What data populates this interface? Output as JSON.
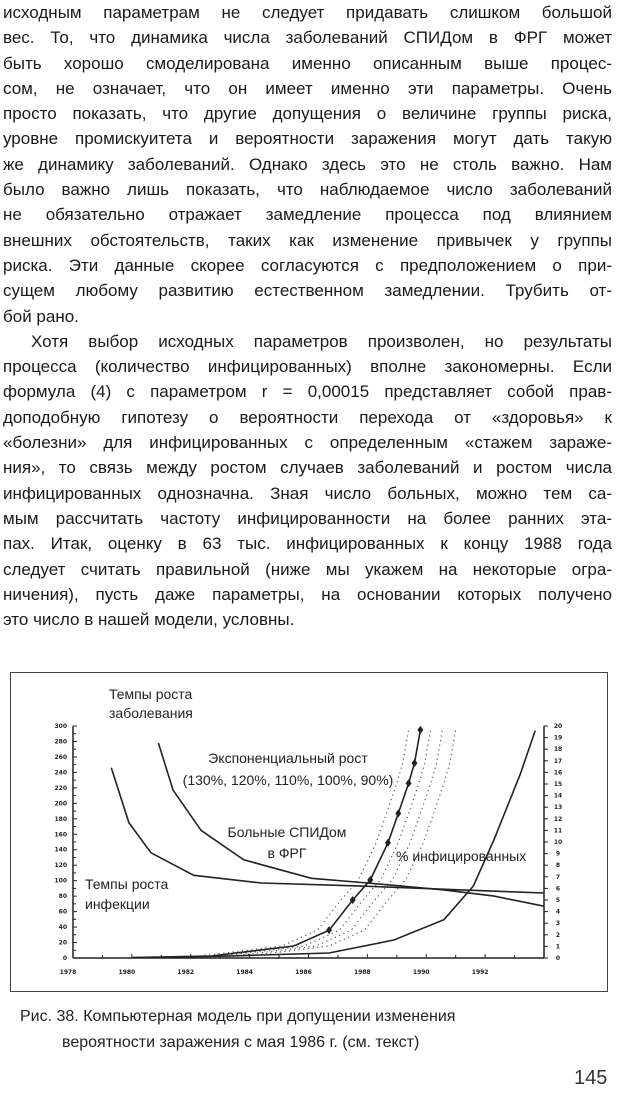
{
  "body_text": {
    "paragraph1": [
      "исходным параметрам не следует придавать слишком большой",
      "вес. То, что динамика числа заболеваний СПИДом в ФРГ может",
      "быть хорошо смоделирована именно описанным выше процес-",
      "сом, не означает, что он имеет именно эти параметры. Очень",
      "просто показать, что другие допущения о величине группы риска,",
      "уровне промискуитета и вероятности заражения могут дать такую",
      "же динамику заболеваний. Однако здесь это не столь важно. Нам",
      "было важно лишь показать, что наблюдаемое число заболеваний",
      "не обязательно отражает замедление процесса под влиянием",
      "внешних обстоятельств, таких как изменение привычек у группы",
      "риска. Эти данные скорее согласуются с предположением о при-",
      "сущем любому развитию естественном замедлении. Трубить от-",
      "бой рано."
    ],
    "paragraph2": [
      "Хотя выбор исходных параметров произволен, но результаты",
      "процесса (количество инфицированных) вполне закономерны. Если",
      "формула (4) с параметром r = 0,00015 представляет собой прав-",
      "доподобную гипотезу о вероятности перехода от «здоровья» к",
      "«болезни» для инфицированных с определенным «стажем зараже-",
      "ния», то связь между ростом случаев заболеваний и ростом числа",
      "инфицированных однозначна. Зная число больных, можно тем са-",
      "мым рассчитать частоту инфицированности на более ранних эта-",
      "пах. Итак, оценку в 63 тыс. инфицированных к концу 1988 года",
      "следует считать правильной (ниже мы укажем на некоторые огра-",
      "ничения), пусть даже параметры, на основании которых получено",
      "это число в нашей модели, условны."
    ]
  },
  "chart_data": {
    "type": "line",
    "title": "",
    "xlim": [
      1978,
      1994
    ],
    "ylim_left": [
      0,
      300
    ],
    "ylim_right": [
      0,
      20
    ],
    "x_tick_labels": [
      "1978",
      "1980",
      "1982",
      "1984",
      "1986",
      "1988",
      "1990",
      "1992"
    ],
    "y_left_tick_labels": [
      "0",
      "20",
      "40",
      "60",
      "80",
      "100",
      "120",
      "140",
      "160",
      "180",
      "200",
      "220",
      "240",
      "260",
      "280",
      "300"
    ],
    "y_right_tick_labels": [
      "0",
      "1",
      "2",
      "3",
      "4",
      "5",
      "6",
      "7",
      "8",
      "9",
      "10",
      "11",
      "12",
      "13",
      "14",
      "15",
      "16",
      "17",
      "18",
      "19",
      "20"
    ],
    "grid": false,
    "annotations": {
      "disease_rate": [
        "Темпы роста",
        "заболевания"
      ],
      "exponential": [
        "Экспоненциальный рост",
        "(130%, 120%, 110%, 100%, 90%)"
      ],
      "patients": [
        "Больные СПИДом",
        "в ФРГ"
      ],
      "infected_pct": "% инфицированных",
      "infection_rate": [
        "Темпы роста",
        "инфекции"
      ]
    },
    "series": [
      {
        "name": "Темпы роста инфекции",
        "axis": "left",
        "style": "solid",
        "points": [
          [
            1979.3,
            246
          ],
          [
            1979.9,
            175
          ],
          [
            1980.65,
            136
          ],
          [
            1982.1,
            107
          ],
          [
            1984.4,
            97
          ],
          [
            1987.8,
            93
          ],
          [
            1991.2,
            88
          ],
          [
            1994,
            84
          ]
        ]
      },
      {
        "name": "Темпы роста заболевания",
        "axis": "left",
        "style": "solid",
        "points": [
          [
            1980.9,
            278
          ],
          [
            1981.4,
            217
          ],
          [
            1982.35,
            165
          ],
          [
            1983.8,
            127
          ],
          [
            1986.1,
            103
          ],
          [
            1988,
            97
          ],
          [
            1990.6,
            88
          ],
          [
            1992.3,
            80
          ],
          [
            1994,
            67
          ]
        ]
      },
      {
        "name": "% инфицированных",
        "axis": "right",
        "style": "solid",
        "points": [
          [
            1981,
            0.05
          ],
          [
            1983.3,
            0.17
          ],
          [
            1986.7,
            0.43
          ],
          [
            1988.9,
            1.55
          ],
          [
            1990.6,
            3.3
          ],
          [
            1991.6,
            6.2
          ],
          [
            1992.3,
            10.2
          ],
          [
            1993.2,
            15.9
          ],
          [
            1993.7,
            19.6
          ]
        ]
      },
      {
        "name": "Больные СПИДом в ФРГ",
        "axis": "left",
        "style": "solid-diamonds",
        "points": [
          [
            1980,
            0.5
          ],
          [
            1982.7,
            2.6
          ],
          [
            1985.5,
            15.5
          ],
          [
            1986.7,
            36
          ],
          [
            1987.5,
            75
          ],
          [
            1988.1,
            101
          ],
          [
            1988.7,
            149
          ],
          [
            1989.05,
            187
          ],
          [
            1989.4,
            226
          ],
          [
            1989.6,
            252
          ],
          [
            1989.8,
            295
          ]
        ]
      },
      {
        "name": "Экспоненциальный рост",
        "axis": "left",
        "style": "dotted",
        "variants": [
          "130%",
          "120%",
          "110%",
          "100%",
          "90%"
        ]
      }
    ]
  },
  "caption": {
    "line1": "Рис. 38. Компьютерная модель при допущении изменения",
    "line2": "вероятности заражения с мая 1986 г. (см. текст)"
  },
  "page_number": "145"
}
